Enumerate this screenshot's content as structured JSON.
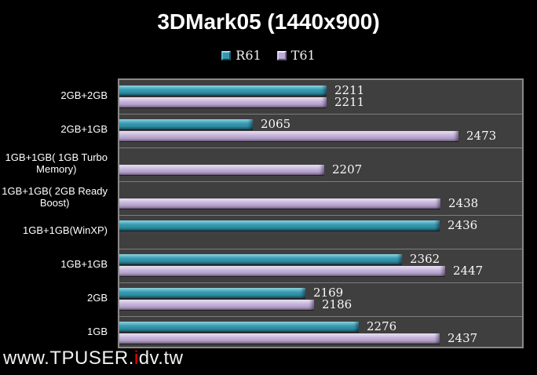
{
  "title": "3DMark05 (1440x900)",
  "legend": {
    "items": [
      {
        "name": "R61",
        "color": "#3a96ac"
      },
      {
        "name": "T61",
        "color": "#bcabd4"
      }
    ]
  },
  "watermark": {
    "prefix": "www.TPUSER.",
    "highlight": "i",
    "suffix": "dv.tw"
  },
  "colors": {
    "background": "#000000",
    "plot_background": "#3f3f3f",
    "plot_border": "#898989",
    "row_separator": "#7d7d7d",
    "r61_bar": "#3a96ac",
    "t61_bar": "#c6b5db",
    "value_text": "#f8f8f8",
    "watermark_accent": "#ff0000"
  },
  "chart_data": {
    "type": "bar",
    "orientation": "horizontal",
    "title": "3DMark05 (1440x900)",
    "xlabel": "",
    "ylabel": "",
    "xlim": [
      1800,
      2600
    ],
    "grid": false,
    "legend_position": "top-center",
    "axis_tick_labels_visible": false,
    "categories": [
      "2GB+2GB",
      "2GB+1GB",
      "1GB+1GB( 1GB Turbo\nMemory)",
      "1GB+1GB( 2GB Ready\nBoost)",
      "1GB+1GB(WinXP)",
      "1GB+1GB",
      "2GB",
      "1GB"
    ],
    "series": [
      {
        "name": "R61",
        "values": [
          2211,
          2065,
          null,
          null,
          2436,
          2362,
          2169,
          2276
        ]
      },
      {
        "name": "T61",
        "values": [
          2211,
          2473,
          2207,
          2438,
          null,
          2447,
          2186,
          2437
        ]
      }
    ]
  }
}
